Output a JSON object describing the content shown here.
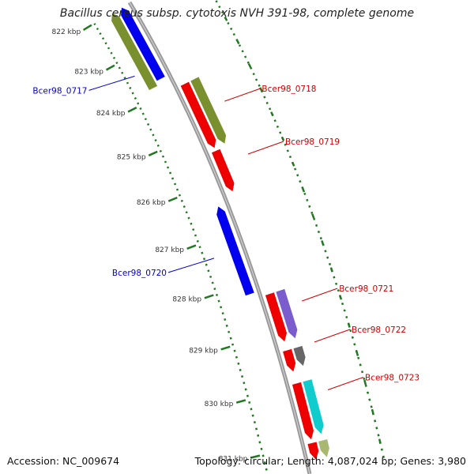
{
  "map": {
    "title": "Bacillus cereus subsp. cytotoxis NVH 391-98, complete genome",
    "accession": "Accession: NC_009674",
    "summary": "Topology: circular; Length: 4,087,024 bp; Genes: 3,980"
  },
  "ticks": [
    {
      "label": "822 kbp",
      "kbp": 822
    },
    {
      "label": "823 kbp",
      "kbp": 823
    },
    {
      "label": "824 kbp",
      "kbp": 824
    },
    {
      "label": "825 kbp",
      "kbp": 825
    },
    {
      "label": "826 kbp",
      "kbp": 826
    },
    {
      "label": "827 kbp",
      "kbp": 827
    },
    {
      "label": "828 kbp",
      "kbp": 828
    },
    {
      "label": "829 kbp",
      "kbp": 829
    },
    {
      "label": "830 kbp",
      "kbp": 830
    },
    {
      "label": "831 kbp",
      "kbp": 831
    }
  ],
  "features": [
    {
      "start": 822.0,
      "end": 823.8,
      "strand": "minus",
      "ring": 2,
      "color": "#7a8f2e"
    },
    {
      "start": 822.0,
      "end": 823.7,
      "strand": "minus",
      "ring": 1,
      "color": "#0000ee"
    },
    {
      "start": 824.0,
      "end": 825.4,
      "strand": "plus",
      "ring": 1,
      "color": "#ee0000"
    },
    {
      "start": 824.0,
      "end": 825.4,
      "strand": "plus",
      "ring": 2,
      "color": "#7a8f2e"
    },
    {
      "start": 825.45,
      "end": 826.3,
      "strand": "plus",
      "ring": 1,
      "color": "#ee0000"
    },
    {
      "start": 826.45,
      "end": 828.2,
      "strand": "minus",
      "ring": 1,
      "color": "#0000ee"
    },
    {
      "start": 828.3,
      "end": 829.2,
      "strand": "plus",
      "ring": 1,
      "color": "#ee0000"
    },
    {
      "start": 828.3,
      "end": 829.2,
      "strand": "plus",
      "ring": 2,
      "color": "#7a5ccc"
    },
    {
      "start": 829.35,
      "end": 829.75,
      "strand": "plus",
      "ring": 1,
      "color": "#ee0000"
    },
    {
      "start": 829.35,
      "end": 829.7,
      "strand": "plus",
      "ring": 2,
      "color": "#666666"
    },
    {
      "start": 829.95,
      "end": 830.95,
      "strand": "plus",
      "ring": 1,
      "color": "#ee0000"
    },
    {
      "start": 829.95,
      "end": 830.9,
      "strand": "plus",
      "ring": 2,
      "color": "#11cccc"
    },
    {
      "start": 831.0,
      "end": 831.3,
      "strand": "plus",
      "ring": 1,
      "color": "#ee0000"
    },
    {
      "start": 831.0,
      "end": 831.3,
      "strand": "plus",
      "ring": 2,
      "color": "#a8b870"
    }
  ],
  "gene_labels": [
    {
      "text": "Bcer98_0717",
      "color": "#0000cc",
      "side": "left",
      "kbp": 823.4
    },
    {
      "text": "Bcer98_0718",
      "color": "#cc0000",
      "side": "right",
      "kbp": 824.65
    },
    {
      "text": "Bcer98_0719",
      "color": "#cc0000",
      "side": "right",
      "kbp": 825.75
    },
    {
      "text": "Bcer98_0720",
      "color": "#0000cc",
      "side": "left",
      "kbp": 827.35
    },
    {
      "text": "Bcer98_0721",
      "color": "#cc0000",
      "side": "right",
      "kbp": 828.6
    },
    {
      "text": "Bcer98_0722",
      "color": "#cc0000",
      "side": "right",
      "kbp": 829.35
    },
    {
      "text": "Bcer98_0723",
      "color": "#cc0000",
      "side": "right",
      "kbp": 830.2
    }
  ],
  "colors": {
    "backbone": "#999999",
    "gc_skew": "#227722",
    "tick_label": "#333333"
  }
}
